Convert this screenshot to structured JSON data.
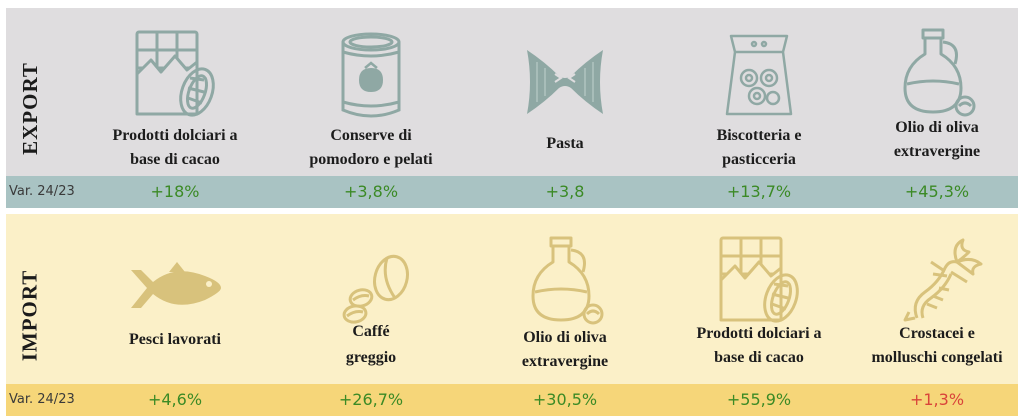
{
  "colors": {
    "export_bg": "#dfdddf",
    "import_bg": "#fbf0c8",
    "export_row": "#a9c3c3",
    "import_row": "#f6d679",
    "positive": "#3b8a25",
    "negative": "#d9443a",
    "export_icon": "#8fa8a4",
    "import_icon": "#d8c27c"
  },
  "export": {
    "title": "EXPORT",
    "var_label": "Var. 24/23",
    "items": [
      {
        "label_line1": "Prodotti dolciari a",
        "label_line2": "base di cacao",
        "variation": "+18%",
        "icon": "chocolate-bar-icon"
      },
      {
        "label_line1": "Conserve di",
        "label_line2": "pomodoro e pelati",
        "variation": "+3,8%",
        "icon": "tomato-can-icon"
      },
      {
        "label_line1": "Pasta",
        "label_line2": "",
        "variation": "+3,8",
        "icon": "farfalle-pasta-icon"
      },
      {
        "label_line1": "Biscotteria e",
        "label_line2": "pasticceria",
        "variation": "+13,7%",
        "icon": "cookie-bag-icon"
      },
      {
        "label_line1": "Olio di oliva",
        "label_line2": "extravergine",
        "variation": "+45,3%",
        "icon": "olive-oil-bottle-icon"
      }
    ]
  },
  "import": {
    "title": "IMPORT",
    "var_label": "Var. 24/23",
    "items": [
      {
        "label_line1": "Pesci lavorati",
        "label_line2": "",
        "variation": "+4,6%",
        "icon": "fish-icon"
      },
      {
        "label_line1": "Caffé",
        "label_line2": "greggio",
        "variation": "+26,7%",
        "icon": "coffee-beans-icon"
      },
      {
        "label_line1": "Olio di oliva",
        "label_line2": "extravergine",
        "variation": "+30,5%",
        "icon": "olive-oil-bottle-icon"
      },
      {
        "label_line1": "Prodotti dolciari a",
        "label_line2": "base di cacao",
        "variation": "+55,9%",
        "icon": "chocolate-bar-icon"
      },
      {
        "label_line1": "Crostacei e",
        "label_line2": "molluschi congelati",
        "variation": "+1,3%",
        "icon": "lobster-icon"
      }
    ]
  }
}
